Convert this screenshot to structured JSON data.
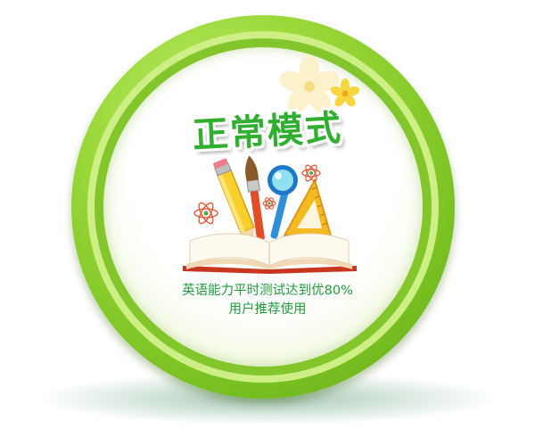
{
  "mode_card": {
    "title": "正常模式",
    "description_line1": "英语能力平时测试达到优80%",
    "description_line2": "用户推荐使用"
  },
  "icons": {
    "book": "open-book-icon",
    "pencil": "pencil-icon",
    "paintbrush": "paintbrush-icon",
    "magnifier": "magnifying-glass-icon",
    "ruler": "triangle-ruler-icon",
    "atom": "atom-icon",
    "flower": "flower-icon"
  },
  "colors": {
    "ring_green": "#7cc323",
    "title_green": "#2fae2f",
    "text_green": "#1f9a3a",
    "book_red": "#d64a2a",
    "flower_yellow": "#f7d640"
  }
}
